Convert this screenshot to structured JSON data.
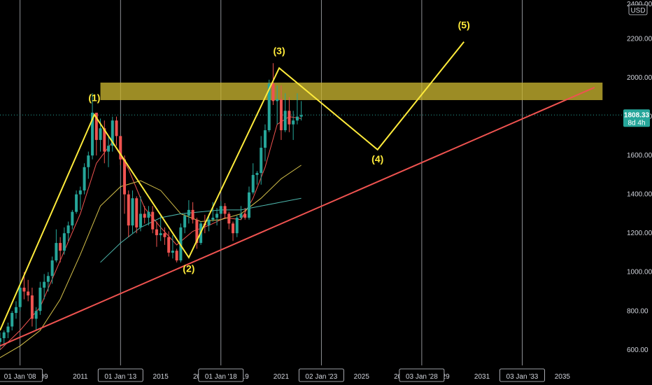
{
  "chart_data": {
    "type": "candlestick",
    "title": "",
    "price_axis": {
      "currency": "USD",
      "ylim": [
        520,
        2400
      ],
      "ticks": [
        "600.00",
        "800.00",
        "1000.00",
        "1200.00",
        "1400.00",
        "1600.00",
        "1800.00",
        "2000.00",
        "2200.00",
        "2400.00"
      ],
      "tick_values": [
        600,
        800,
        1000,
        1200,
        1400,
        1600,
        1800,
        2000,
        2200,
        2400
      ]
    },
    "time_axis": {
      "xlim": [
        2007.0,
        2038.0
      ],
      "year_ticks": [
        "2009",
        "2011",
        "2015",
        "2017",
        "2019",
        "2021",
        "2025",
        "2027",
        "2029",
        "2031",
        "2035"
      ],
      "year_values": [
        2009,
        2011,
        2015,
        2017,
        2019,
        2021,
        2025,
        2027,
        2029,
        2031,
        2035
      ],
      "leading_tick": "2007",
      "date_labels": [
        {
          "text": "01 Jan '08",
          "x": 2008.0
        },
        {
          "text": "01 Jan '13",
          "x": 2013.0
        },
        {
          "text": "01 Jan '18",
          "x": 2018.0
        },
        {
          "text": "02 Jan '23",
          "x": 2023.0
        },
        {
          "text": "03 Jan '28",
          "x": 2028.0
        },
        {
          "text": "03 Jan '33",
          "x": 2033.0
        }
      ],
      "vertical_gridlines_at": [
        2008.0,
        2013.0,
        2018.0,
        2023.0,
        2028.0,
        2033.0
      ]
    },
    "last_price": {
      "value": "1808.33",
      "countdown": "8d 4h",
      "y": 1808.33,
      "color": "#26a69a"
    },
    "candles_ohlc": [
      [
        2007.0,
        640,
        690,
        600,
        660
      ],
      [
        2007.2,
        660,
        700,
        620,
        690
      ],
      [
        2007.4,
        690,
        740,
        660,
        720
      ],
      [
        2007.6,
        720,
        800,
        700,
        790
      ],
      [
        2007.8,
        790,
        850,
        760,
        820
      ],
      [
        2008.0,
        820,
        950,
        800,
        920
      ],
      [
        2008.2,
        920,
        1000,
        860,
        900
      ],
      [
        2008.4,
        900,
        960,
        850,
        880
      ],
      [
        2008.6,
        880,
        920,
        720,
        760
      ],
      [
        2008.8,
        760,
        820,
        700,
        800
      ],
      [
        2009.0,
        800,
        950,
        780,
        920
      ],
      [
        2009.2,
        920,
        990,
        860,
        950
      ],
      [
        2009.4,
        950,
        1000,
        900,
        980
      ],
      [
        2009.6,
        980,
        1080,
        940,
        1060
      ],
      [
        2009.8,
        1060,
        1220,
        1050,
        1150
      ],
      [
        2010.0,
        1150,
        1180,
        1050,
        1110
      ],
      [
        2010.2,
        1110,
        1230,
        1090,
        1200
      ],
      [
        2010.4,
        1200,
        1260,
        1160,
        1240
      ],
      [
        2010.6,
        1240,
        1320,
        1220,
        1310
      ],
      [
        2010.8,
        1310,
        1420,
        1300,
        1400
      ],
      [
        2011.0,
        1400,
        1440,
        1320,
        1420
      ],
      [
        2011.2,
        1420,
        1560,
        1400,
        1540
      ],
      [
        2011.4,
        1540,
        1620,
        1480,
        1600
      ],
      [
        2011.6,
        1600,
        1920,
        1580,
        1820
      ],
      [
        2011.8,
        1820,
        1800,
        1600,
        1680
      ],
      [
        2012.0,
        1680,
        1790,
        1620,
        1740
      ],
      [
        2012.2,
        1740,
        1780,
        1560,
        1620
      ],
      [
        2012.4,
        1620,
        1700,
        1540,
        1650
      ],
      [
        2012.6,
        1650,
        1800,
        1620,
        1780
      ],
      [
        2012.8,
        1780,
        1800,
        1650,
        1700
      ],
      [
        2013.0,
        1700,
        1700,
        1550,
        1580
      ],
      [
        2013.2,
        1580,
        1600,
        1300,
        1400
      ],
      [
        2013.4,
        1400,
        1420,
        1180,
        1240
      ],
      [
        2013.6,
        1240,
        1420,
        1200,
        1380
      ],
      [
        2013.8,
        1380,
        1390,
        1200,
        1230
      ],
      [
        2014.0,
        1230,
        1390,
        1210,
        1300
      ],
      [
        2014.2,
        1300,
        1340,
        1250,
        1280
      ],
      [
        2014.4,
        1280,
        1340,
        1240,
        1310
      ],
      [
        2014.6,
        1310,
        1340,
        1200,
        1220
      ],
      [
        2014.8,
        1220,
        1260,
        1130,
        1190
      ],
      [
        2015.0,
        1190,
        1300,
        1160,
        1200
      ],
      [
        2015.2,
        1200,
        1230,
        1140,
        1180
      ],
      [
        2015.4,
        1180,
        1210,
        1080,
        1100
      ],
      [
        2015.6,
        1100,
        1190,
        1070,
        1110
      ],
      [
        2015.8,
        1110,
        1120,
        1050,
        1060
      ],
      [
        2016.0,
        1060,
        1250,
        1050,
        1230
      ],
      [
        2016.2,
        1230,
        1300,
        1200,
        1290
      ],
      [
        2016.4,
        1290,
        1370,
        1250,
        1320
      ],
      [
        2016.6,
        1320,
        1360,
        1250,
        1270
      ],
      [
        2016.8,
        1270,
        1280,
        1120,
        1150
      ],
      [
        2017.0,
        1150,
        1260,
        1140,
        1250
      ],
      [
        2017.2,
        1250,
        1295,
        1200,
        1240
      ],
      [
        2017.4,
        1240,
        1300,
        1210,
        1270
      ],
      [
        2017.6,
        1270,
        1360,
        1260,
        1280
      ],
      [
        2017.8,
        1280,
        1330,
        1240,
        1300
      ],
      [
        2018.0,
        1300,
        1365,
        1300,
        1340
      ],
      [
        2018.2,
        1340,
        1355,
        1280,
        1300
      ],
      [
        2018.4,
        1300,
        1310,
        1220,
        1250
      ],
      [
        2018.6,
        1250,
        1260,
        1160,
        1200
      ],
      [
        2018.8,
        1200,
        1290,
        1180,
        1280
      ],
      [
        2019.0,
        1280,
        1340,
        1270,
        1300
      ],
      [
        2019.2,
        1300,
        1330,
        1270,
        1280
      ],
      [
        2019.4,
        1280,
        1440,
        1270,
        1410
      ],
      [
        2019.6,
        1410,
        1560,
        1400,
        1500
      ],
      [
        2019.8,
        1500,
        1520,
        1450,
        1510
      ],
      [
        2020.0,
        1510,
        1700,
        1450,
        1640
      ],
      [
        2020.2,
        1640,
        1760,
        1570,
        1730
      ],
      [
        2020.4,
        1730,
        1990,
        1720,
        1970
      ],
      [
        2020.6,
        1970,
        2075,
        1860,
        1880
      ],
      [
        2020.8,
        1880,
        1960,
        1760,
        1890
      ],
      [
        2021.0,
        1890,
        1960,
        1680,
        1730
      ],
      [
        2021.2,
        1730,
        1920,
        1720,
        1830
      ],
      [
        2021.4,
        1830,
        1900,
        1720,
        1760
      ],
      [
        2021.6,
        1760,
        1830,
        1680,
        1780
      ],
      [
        2021.8,
        1780,
        1920,
        1760,
        1800
      ],
      [
        2022.0,
        1800,
        1880,
        1780,
        1808
      ]
    ],
    "moving_averages": [
      {
        "color": "#ef5350",
        "points": [
          [
            2007.0,
            600
          ],
          [
            2008.0,
            700
          ],
          [
            2009.0,
            820
          ],
          [
            2010.0,
            1060
          ],
          [
            2011.0,
            1300
          ],
          [
            2011.8,
            1560
          ],
          [
            2012.6,
            1670
          ],
          [
            2013.4,
            1530
          ],
          [
            2014.2,
            1330
          ],
          [
            2015.0,
            1230
          ],
          [
            2015.8,
            1140
          ],
          [
            2016.6,
            1210
          ],
          [
            2017.4,
            1240
          ],
          [
            2018.2,
            1280
          ],
          [
            2019.0,
            1270
          ],
          [
            2019.6,
            1380
          ],
          [
            2020.2,
            1540
          ],
          [
            2020.8,
            1760
          ],
          [
            2021.4,
            1800
          ],
          [
            2022.0,
            1790
          ]
        ]
      },
      {
        "color": "#d4c04a",
        "points": [
          [
            2007.0,
            560
          ],
          [
            2008.0,
            620
          ],
          [
            2009.0,
            700
          ],
          [
            2010.0,
            860
          ],
          [
            2011.0,
            1090
          ],
          [
            2012.0,
            1340
          ],
          [
            2013.0,
            1440
          ],
          [
            2014.0,
            1470
          ],
          [
            2015.0,
            1420
          ],
          [
            2016.0,
            1300
          ],
          [
            2017.0,
            1260
          ],
          [
            2018.0,
            1270
          ],
          [
            2019.0,
            1300
          ],
          [
            2020.0,
            1380
          ],
          [
            2021.0,
            1480
          ],
          [
            2022.0,
            1550
          ]
        ]
      },
      {
        "color": "#4db6ac",
        "points": [
          [
            2012.0,
            1050
          ],
          [
            2013.0,
            1150
          ],
          [
            2014.0,
            1230
          ],
          [
            2015.0,
            1280
          ],
          [
            2016.0,
            1300
          ],
          [
            2017.0,
            1310
          ],
          [
            2018.0,
            1320
          ],
          [
            2019.0,
            1320
          ],
          [
            2020.0,
            1340
          ],
          [
            2021.0,
            1360
          ],
          [
            2022.0,
            1380
          ]
        ]
      }
    ],
    "resistance_zone": {
      "y_low": 1885,
      "y_high": 1975,
      "x_start": 2012.0,
      "x_end": 2037.0,
      "color": "#c8b430"
    },
    "trendline": {
      "color": "#ef5350",
      "from": [
        2007.0,
        620
      ],
      "to": [
        2036.6,
        1950
      ]
    },
    "elliott_wave": {
      "color": "#ffeb3b",
      "points": [
        [
          2007.0,
          700
        ],
        [
          2011.7,
          1810
        ],
        [
          2016.4,
          1075
        ],
        [
          2020.9,
          2050
        ],
        [
          2025.8,
          1630
        ],
        [
          2030.1,
          2185
        ]
      ],
      "labels": [
        {
          "text": "(1)",
          "x": 2011.7,
          "y": 1880
        },
        {
          "text": "(2)",
          "x": 2016.4,
          "y": 1000
        },
        {
          "text": "(3)",
          "x": 2020.9,
          "y": 2120
        },
        {
          "text": "(4)",
          "x": 2025.8,
          "y": 1565
        },
        {
          "text": "(5)",
          "x": 2030.1,
          "y": 2255
        }
      ]
    },
    "colors": {
      "bull": "#26a69a",
      "bear": "#ef5350",
      "grid": "#d1d4dc",
      "background": "#000000",
      "last_price_line": "#26a69a"
    }
  }
}
